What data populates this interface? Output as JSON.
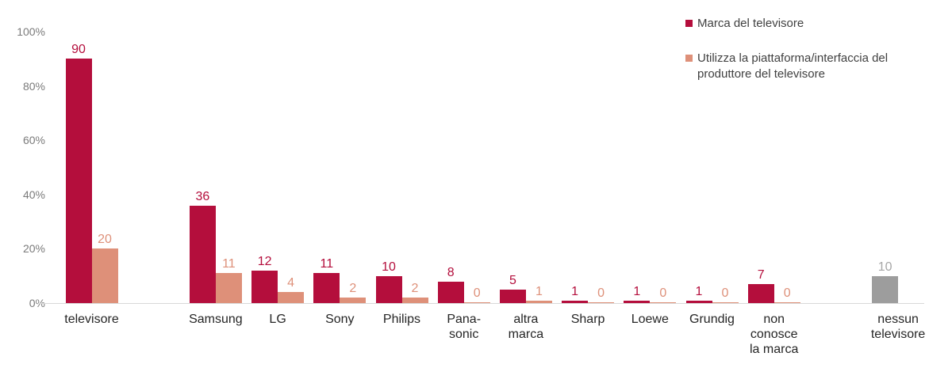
{
  "chart_data": {
    "type": "bar",
    "title": "",
    "xlabel": "",
    "ylabel": "",
    "ylim": [
      0,
      100
    ],
    "yticks": [
      0,
      20,
      40,
      60,
      80,
      100
    ],
    "ytick_labels": [
      "0%",
      "20%",
      "40%",
      "60%",
      "80%",
      "100%"
    ],
    "grid": false,
    "background": "#ffffff",
    "axis_line_color": "#d9d9d9",
    "legend_position": "top-right",
    "categories": [
      "televisore",
      "Samsung",
      "LG",
      "Sony",
      "Philips",
      "Pana-sonic",
      "altra marca",
      "Sharp",
      "Loewe",
      "Grundig",
      "non conosce la marca",
      "nessun televisore"
    ],
    "category_label_lines": [
      [
        "televisore"
      ],
      [
        "Samsung"
      ],
      [
        "LG"
      ],
      [
        "Sony"
      ],
      [
        "Philips"
      ],
      [
        "Pana-",
        "sonic"
      ],
      [
        "altra",
        "marca"
      ],
      [
        "Sharp"
      ],
      [
        "Loewe"
      ],
      [
        "Grundig"
      ],
      [
        "non",
        "conosce",
        "la marca"
      ],
      [
        "nessun",
        "televisore"
      ]
    ],
    "category_slots": [
      0,
      2,
      3,
      4,
      5,
      6,
      7,
      8,
      9,
      10,
      11,
      13
    ],
    "series": [
      {
        "name": "Marca del televisore",
        "color": "#b40e3c",
        "label_color": "#b40e3c",
        "side": "left",
        "in_legend": true,
        "values": [
          90,
          36,
          12,
          11,
          10,
          8,
          5,
          1,
          1,
          1,
          7,
          null
        ]
      },
      {
        "name": "Utilizza la piattaforma/interfaccia del produttore del televisore",
        "color": "#de9079",
        "label_color": "#de9079",
        "side": "right",
        "in_legend": true,
        "values": [
          20,
          11,
          4,
          2,
          2,
          0,
          1,
          0,
          0,
          0,
          0,
          null
        ]
      },
      {
        "name": "nessun televisore",
        "color": "#9d9d9d",
        "label_color": "#a6a6a6",
        "side": "left",
        "in_legend": false,
        "values": [
          null,
          null,
          null,
          null,
          null,
          null,
          null,
          null,
          null,
          null,
          null,
          10
        ]
      }
    ],
    "legend": [
      {
        "label": "Marca del televisore",
        "color": "#b40e3c"
      },
      {
        "label": "Utilizza la piattaforma/interfaccia del produttore del televisore",
        "color": "#de9079"
      }
    ]
  }
}
